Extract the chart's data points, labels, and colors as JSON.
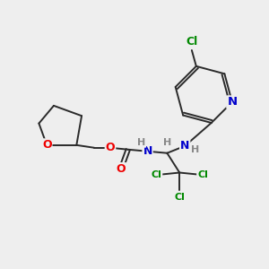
{
  "bg_color": "#eeeeee",
  "bond_color": "#2a2a2a",
  "atom_colors": {
    "O": "#ee0000",
    "N": "#0000cc",
    "Cl": "#008800",
    "H": "#888888",
    "C": "#2a2a2a"
  },
  "figsize": [
    3.0,
    3.0
  ],
  "dpi": 100
}
